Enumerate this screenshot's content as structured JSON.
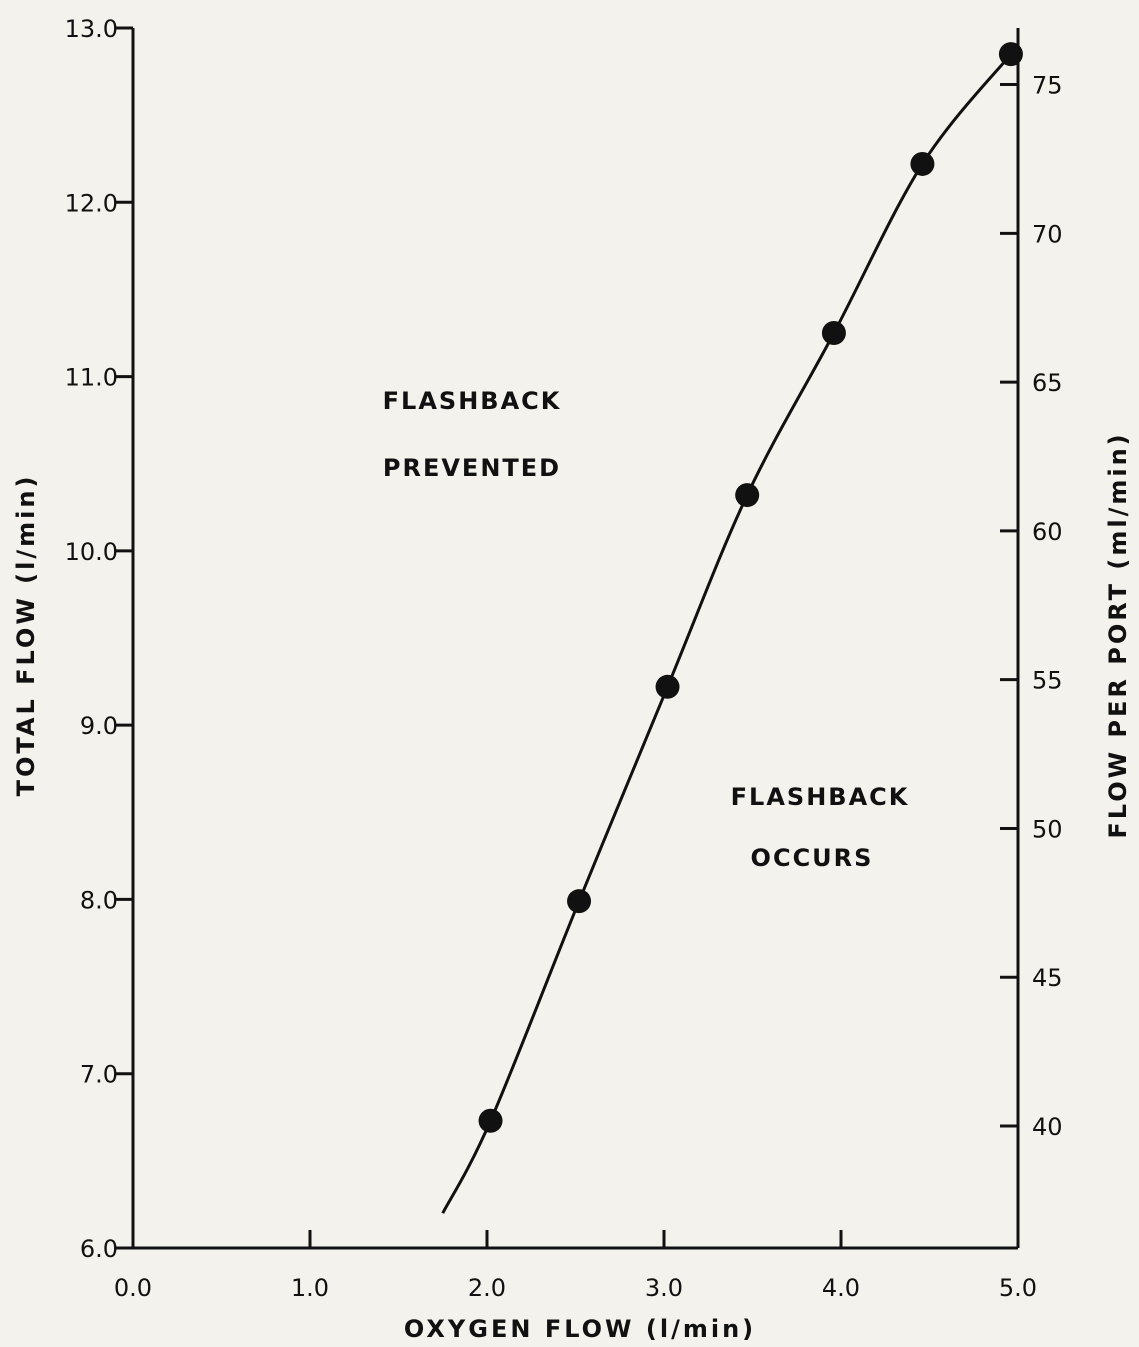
{
  "chart_data": {
    "type": "scatter",
    "xlabel": "OXYGEN FLOW (l/min)",
    "ylabel": "TOTAL FLOW (l/min)",
    "y2label": "FLOW PER PORT (ml/min)",
    "xlim": [
      0.0,
      5.0
    ],
    "ylim": [
      6.0,
      13.0
    ],
    "y2lim": [
      35.9,
      76.9
    ],
    "x_ticks": [
      "0.0",
      "1.0",
      "2.0",
      "3.0",
      "4.0",
      "5.0"
    ],
    "y_ticks": [
      "6.0",
      "7.0",
      "8.0",
      "9.0",
      "10.0",
      "11.0",
      "12.0",
      "13.0"
    ],
    "y2_ticks": [
      "40",
      "45",
      "50",
      "55",
      "60",
      "65",
      "70",
      "75"
    ],
    "grid": false,
    "series": [
      {
        "points": [
          {
            "x": 2.02,
            "y": 6.73
          },
          {
            "x": 2.52,
            "y": 7.99
          },
          {
            "x": 3.02,
            "y": 9.22
          },
          {
            "x": 3.47,
            "y": 10.32
          },
          {
            "x": 3.96,
            "y": 11.25
          },
          {
            "x": 4.46,
            "y": 12.22
          },
          {
            "x": 4.96,
            "y": 12.85
          }
        ]
      }
    ],
    "fit_curve": [
      {
        "x": 1.75,
        "y": 6.2
      },
      {
        "x": 2.02,
        "y": 6.73
      },
      {
        "x": 2.52,
        "y": 7.99
      },
      {
        "x": 3.02,
        "y": 9.22
      },
      {
        "x": 3.47,
        "y": 10.32
      },
      {
        "x": 3.96,
        "y": 11.25
      },
      {
        "x": 4.46,
        "y": 12.22
      },
      {
        "x": 4.96,
        "y": 12.85
      }
    ],
    "annotations": [
      {
        "lines": [
          "FLASHBACK",
          "PREVENTED"
        ]
      },
      {
        "lines": [
          "FLASHBACK",
          "OCCURS"
        ]
      }
    ]
  }
}
